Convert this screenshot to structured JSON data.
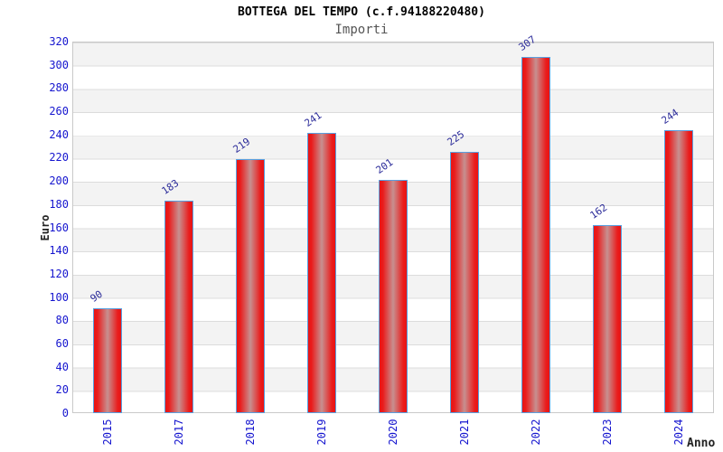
{
  "header": {
    "title": "BOTTEGA DEL TEMPO (c.f.94188220480)",
    "subtitle": "Importi"
  },
  "chart_data": {
    "type": "bar",
    "title": "BOTTEGA DEL TEMPO (c.f.94188220480)",
    "subtitle": "Importi",
    "xlabel": "Anno",
    "ylabel": "Euro",
    "categories": [
      "2015",
      "2017",
      "2018",
      "2019",
      "2020",
      "2021",
      "2022",
      "2023",
      "2024"
    ],
    "values": [
      90,
      183,
      219,
      241,
      201,
      225,
      307,
      162,
      244
    ],
    "ylim": [
      0,
      320
    ],
    "yticks": [
      0,
      20,
      40,
      60,
      80,
      100,
      120,
      140,
      160,
      180,
      200,
      220,
      240,
      260,
      280,
      300,
      320
    ],
    "grid": "horizontal gridlines every 20 units with alternating gray/white bands",
    "legend": "none",
    "bar_value_labels_rotation_deg": -35,
    "xtick_rotation_deg": -90
  },
  "colors": {
    "bar_edge_red": "#e81414",
    "bar_center_sheen": "#c79090",
    "bar_border_blue": "#58a0e0",
    "tick_label_blue": "#1515cf",
    "value_label_navy": "#2a2a99",
    "band_gray": "#f3f3f3",
    "gridline_gray": "#dcdcdc",
    "title_black": "#000000",
    "subtitle_gray": "#555555",
    "axis_name_dark": "#222222"
  }
}
